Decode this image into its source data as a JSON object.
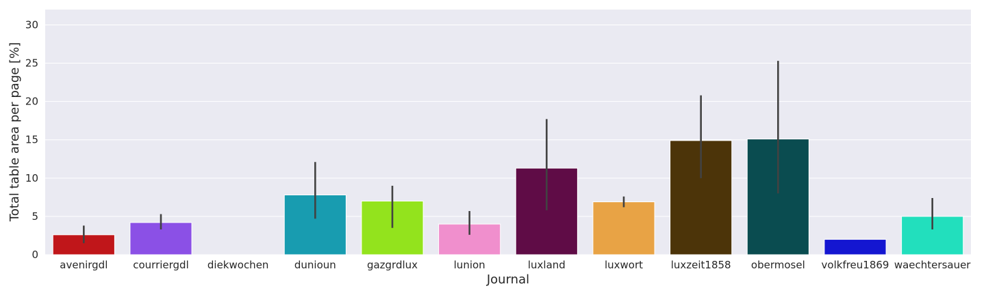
{
  "chart_data": {
    "type": "bar",
    "title": "",
    "xlabel": "Journal",
    "ylabel": "Total table area per page [%]",
    "ylim": [
      0,
      32
    ],
    "yticks": [
      0,
      5,
      10,
      15,
      20,
      25,
      30
    ],
    "grid": true,
    "background": "#eaeaf2",
    "error_bar_color": "#424242",
    "categories": [
      "avenirgdl",
      "courriergdl",
      "diekwochen",
      "dunioun",
      "gazgrdlux",
      "lunion",
      "luxland",
      "luxwort",
      "luxzeit1858",
      "obermosel",
      "volkfreu1869",
      "waechtersauer"
    ],
    "values": [
      2.6,
      4.2,
      0,
      7.8,
      7.0,
      4.0,
      11.3,
      6.9,
      14.9,
      15.1,
      2.0,
      5.0
    ],
    "ci_low": [
      1.5,
      3.3,
      null,
      4.7,
      3.5,
      2.6,
      5.8,
      6.2,
      10.0,
      8.0,
      null,
      3.3
    ],
    "ci_high": [
      3.8,
      5.3,
      null,
      12.1,
      9.0,
      5.7,
      17.7,
      7.6,
      20.8,
      25.3,
      null,
      7.4
    ],
    "colors": [
      "#c0161a",
      "#8b50e6",
      "#d9d9d9",
      "#189cb0",
      "#93e31d",
      "#f08fcd",
      "#5f0c46",
      "#e8a345",
      "#4c3409",
      "#0a4c50",
      "#1416d1",
      "#22dfbd"
    ]
  }
}
